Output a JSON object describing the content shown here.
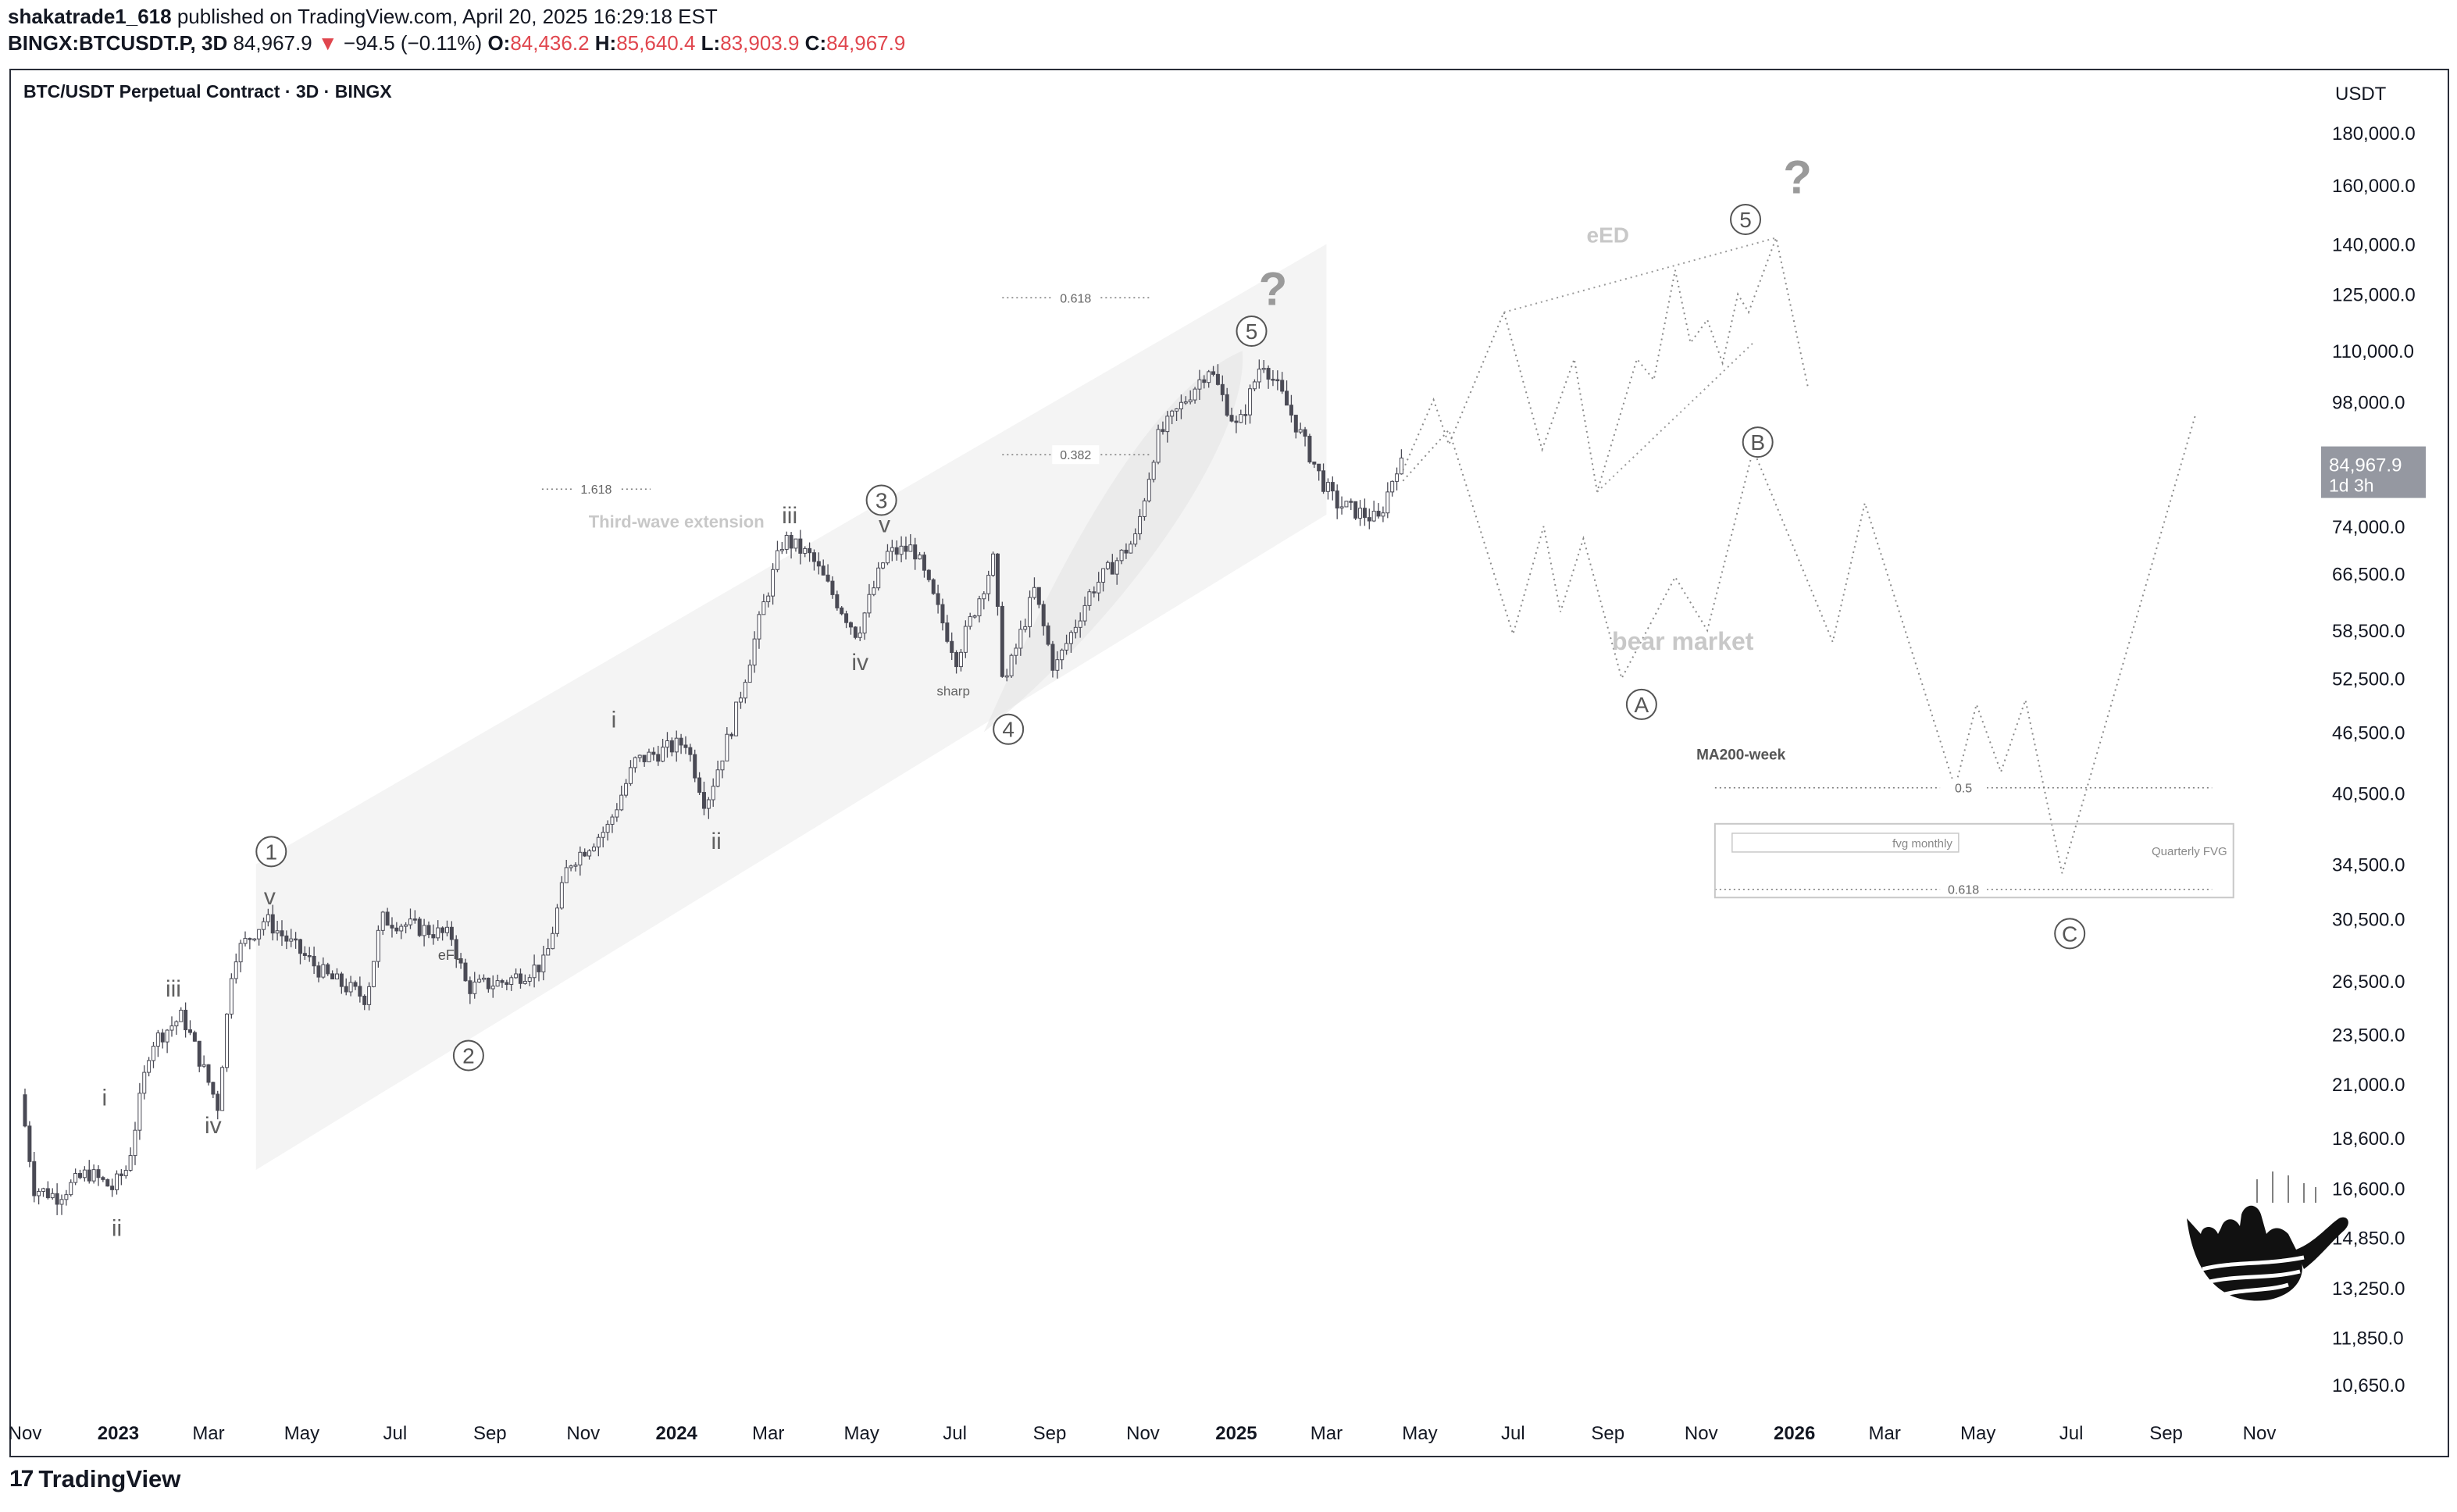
{
  "header": {
    "author": "shakatrade1_618",
    "published_text": "published on TradingView.com, April 20, 2025 16:29:18 EST",
    "symbol": "BINGX:BTCUSDT.P, 3D",
    "last": "84,967.9",
    "change_arrow": "▼",
    "change": "−94.5 (−0.11%)",
    "o_label": "O:",
    "o": "84,436.2",
    "h_label": "H:",
    "h": "85,640.4",
    "l_label": "L:",
    "l": "83,903.9",
    "c_label": "C:",
    "c": "84,967.9"
  },
  "chart_title": "BTC/USDT Perpetual Contract · 3D · BINGX",
  "footer": {
    "logo_mark": "17",
    "brand": "TradingView"
  },
  "colors": {
    "down": "#e0464e",
    "candle": "#4a4a55",
    "price_tag": "#9598a1",
    "annotation": "#707070",
    "faint": "#c8c8c8"
  },
  "chart_data": {
    "type": "line",
    "scale": "log",
    "currency": "USDT",
    "ylim": [
      9500,
      210000
    ],
    "y_ticks": [
      {
        "v": 180000,
        "label": "180,000.0"
      },
      {
        "v": 160000,
        "label": "160,000.0"
      },
      {
        "v": 140000,
        "label": "140,000.0"
      },
      {
        "v": 125000,
        "label": "125,000.0"
      },
      {
        "v": 110000,
        "label": "110,000.0"
      },
      {
        "v": 98000,
        "label": "98,000.0"
      },
      {
        "v": 74000,
        "label": "74,000.0"
      },
      {
        "v": 66500,
        "label": "66,500.0"
      },
      {
        "v": 58500,
        "label": "58,500.0"
      },
      {
        "v": 52500,
        "label": "52,500.0"
      },
      {
        "v": 46500,
        "label": "46,500.0"
      },
      {
        "v": 40500,
        "label": "40,500.0"
      },
      {
        "v": 34500,
        "label": "34,500.0"
      },
      {
        "v": 30500,
        "label": "30,500.0"
      },
      {
        "v": 26500,
        "label": "26,500.0"
      },
      {
        "v": 23500,
        "label": "23,500.0"
      },
      {
        "v": 21000,
        "label": "21,000.0"
      },
      {
        "v": 18600,
        "label": "18,600.0"
      },
      {
        "v": 16600,
        "label": "16,600.0"
      },
      {
        "v": 14850,
        "label": "14,850.0"
      },
      {
        "v": 13250,
        "label": "13,250.0"
      },
      {
        "v": 11850,
        "label": "11,850.0"
      },
      {
        "v": 10650,
        "label": "10,650.0"
      }
    ],
    "price_tag": {
      "value": 84967.9,
      "label": "84,967.9",
      "countdown": "1d 3h"
    },
    "x_ticks": [
      {
        "d": "2022-11-01",
        "label": "Nov",
        "bold": false
      },
      {
        "d": "2023-01-01",
        "label": "2023",
        "bold": true
      },
      {
        "d": "2023-03-01",
        "label": "Mar",
        "bold": false
      },
      {
        "d": "2023-05-01",
        "label": "May",
        "bold": false
      },
      {
        "d": "2023-07-01",
        "label": "Jul",
        "bold": false
      },
      {
        "d": "2023-09-01",
        "label": "Sep",
        "bold": false
      },
      {
        "d": "2023-11-01",
        "label": "Nov",
        "bold": false
      },
      {
        "d": "2024-01-01",
        "label": "2024",
        "bold": true
      },
      {
        "d": "2024-03-01",
        "label": "Mar",
        "bold": false
      },
      {
        "d": "2024-05-01",
        "label": "May",
        "bold": false
      },
      {
        "d": "2024-07-01",
        "label": "Jul",
        "bold": false
      },
      {
        "d": "2024-09-01",
        "label": "Sep",
        "bold": false
      },
      {
        "d": "2024-11-01",
        "label": "Nov",
        "bold": false
      },
      {
        "d": "2025-01-01",
        "label": "2025",
        "bold": true
      },
      {
        "d": "2025-03-01",
        "label": "Mar",
        "bold": false
      },
      {
        "d": "2025-05-01",
        "label": "May",
        "bold": false
      },
      {
        "d": "2025-07-01",
        "label": "Jul",
        "bold": false
      },
      {
        "d": "2025-09-01",
        "label": "Sep",
        "bold": false
      },
      {
        "d": "2025-11-01",
        "label": "Nov",
        "bold": false
      },
      {
        "d": "2026-01-01",
        "label": "2026",
        "bold": true
      },
      {
        "d": "2026-03-01",
        "label": "Mar",
        "bold": false
      },
      {
        "d": "2026-05-01",
        "label": "May",
        "bold": false
      },
      {
        "d": "2026-07-01",
        "label": "Jul",
        "bold": false
      },
      {
        "d": "2026-09-01",
        "label": "Sep",
        "bold": false
      },
      {
        "d": "2026-11-01",
        "label": "Nov",
        "bold": false
      }
    ],
    "price_path": [
      {
        "d": "2022-11-01",
        "p": 20500
      },
      {
        "d": "2022-11-10",
        "p": 16600
      },
      {
        "d": "2022-11-25",
        "p": 16300
      },
      {
        "d": "2022-12-15",
        "p": 17200
      },
      {
        "d": "2022-12-31",
        "p": 16600
      },
      {
        "d": "2023-01-10",
        "p": 17400
      },
      {
        "d": "2023-01-25",
        "p": 23000
      },
      {
        "d": "2023-02-15",
        "p": 24500
      },
      {
        "d": "2023-03-10",
        "p": 20000
      },
      {
        "d": "2023-03-20",
        "p": 28000
      },
      {
        "d": "2023-04-10",
        "p": 30500
      },
      {
        "d": "2023-04-25",
        "p": 29000
      },
      {
        "d": "2023-05-20",
        "p": 26800
      },
      {
        "d": "2023-06-15",
        "p": 25500
      },
      {
        "d": "2023-06-25",
        "p": 30500
      },
      {
        "d": "2023-07-15",
        "p": 30000
      },
      {
        "d": "2023-08-10",
        "p": 29300
      },
      {
        "d": "2023-08-20",
        "p": 26100
      },
      {
        "d": "2023-09-15",
        "p": 26500
      },
      {
        "d": "2023-10-10",
        "p": 27600
      },
      {
        "d": "2023-10-25",
        "p": 34500
      },
      {
        "d": "2023-11-20",
        "p": 37500
      },
      {
        "d": "2023-12-08",
        "p": 43500
      },
      {
        "d": "2024-01-10",
        "p": 45500
      },
      {
        "d": "2024-01-23",
        "p": 39500
      },
      {
        "d": "2024-02-10",
        "p": 47500
      },
      {
        "d": "2024-03-01",
        "p": 62000
      },
      {
        "d": "2024-03-14",
        "p": 72000
      },
      {
        "d": "2024-04-01",
        "p": 69000
      },
      {
        "d": "2024-04-15",
        "p": 63500
      },
      {
        "d": "2024-05-01",
        "p": 58000
      },
      {
        "d": "2024-05-20",
        "p": 69500
      },
      {
        "d": "2024-06-07",
        "p": 70500
      },
      {
        "d": "2024-07-05",
        "p": 55000
      },
      {
        "d": "2024-07-29",
        "p": 68500
      },
      {
        "d": "2024-08-05",
        "p": 51500
      },
      {
        "d": "2024-08-25",
        "p": 64000
      },
      {
        "d": "2024-09-07",
        "p": 53500
      },
      {
        "d": "2024-10-01",
        "p": 64000
      },
      {
        "d": "2024-10-30",
        "p": 72000
      },
      {
        "d": "2024-11-13",
        "p": 90000
      },
      {
        "d": "2024-12-17",
        "p": 106000
      },
      {
        "d": "2025-01-05",
        "p": 92000
      },
      {
        "d": "2025-01-21",
        "p": 108000
      },
      {
        "d": "2025-02-08",
        "p": 96000
      },
      {
        "d": "2025-03-01",
        "p": 82000
      },
      {
        "d": "2025-03-10",
        "p": 78000
      },
      {
        "d": "2025-04-07",
        "p": 75000
      },
      {
        "d": "2025-04-19",
        "p": 84968
      }
    ],
    "scenarios": [
      {
        "name": "bear market",
        "points": [
          {
            "d": "2025-04-20",
            "p": 82000
          },
          {
            "d": "2025-05-20",
            "p": 92000
          },
          {
            "d": "2025-07-01",
            "p": 58000
          },
          {
            "d": "2025-07-21",
            "p": 74000
          },
          {
            "d": "2025-08-01",
            "p": 61000
          },
          {
            "d": "2025-08-16",
            "p": 72000
          },
          {
            "d": "2025-09-10",
            "p": 52500
          },
          {
            "d": "2025-10-15",
            "p": 66000
          },
          {
            "d": "2025-11-05",
            "p": 58500
          },
          {
            "d": "2025-12-05",
            "p": 88000
          },
          {
            "d": "2026-01-26",
            "p": 57000
          },
          {
            "d": "2026-02-16",
            "p": 78000
          },
          {
            "d": "2026-04-16",
            "p": 41000
          },
          {
            "d": "2026-04-30",
            "p": 49500
          },
          {
            "d": "2026-05-16",
            "p": 42500
          },
          {
            "d": "2026-06-01",
            "p": 50000
          },
          {
            "d": "2026-06-25",
            "p": 33800
          },
          {
            "d": "2026-09-20",
            "p": 95000
          }
        ]
      },
      {
        "name": "eED",
        "points": [
          {
            "d": "2025-04-20",
            "p": 84000
          },
          {
            "d": "2025-05-10",
            "p": 98500
          },
          {
            "d": "2025-05-20",
            "p": 89000
          },
          {
            "d": "2025-06-25",
            "p": 120000
          },
          {
            "d": "2025-07-20",
            "p": 88000
          },
          {
            "d": "2025-08-10",
            "p": 108000
          },
          {
            "d": "2025-08-25",
            "p": 80000
          },
          {
            "d": "2025-09-20",
            "p": 108000
          },
          {
            "d": "2025-10-01",
            "p": 103000
          },
          {
            "d": "2025-10-15",
            "p": 132000
          },
          {
            "d": "2025-10-25",
            "p": 112000
          },
          {
            "d": "2025-11-05",
            "p": 118000
          },
          {
            "d": "2025-11-15",
            "p": 107000
          },
          {
            "d": "2025-11-25",
            "p": 125000
          },
          {
            "d": "2025-12-02",
            "p": 120000
          },
          {
            "d": "2025-12-20",
            "p": 142000
          },
          {
            "d": "2026-01-10",
            "p": 101000
          }
        ]
      }
    ],
    "wave_labels": [
      {
        "d": "2023-04-11",
        "p": 35500,
        "label": "1",
        "kind": "circle"
      },
      {
        "d": "2023-08-18",
        "p": 22400,
        "label": "2",
        "kind": "circle"
      },
      {
        "d": "2024-05-14",
        "p": 78500,
        "label": "3",
        "kind": "circle"
      },
      {
        "d": "2024-08-05",
        "p": 46800,
        "label": "4",
        "kind": "circle"
      },
      {
        "d": "2025-01-11",
        "p": 115000,
        "label": "5",
        "kind": "circle"
      },
      {
        "d": "2025-11-30",
        "p": 148000,
        "label": "5",
        "kind": "circle"
      },
      {
        "d": "2025-09-23",
        "p": 49500,
        "label": "A",
        "kind": "circle"
      },
      {
        "d": "2025-12-08",
        "p": 89500,
        "label": "B",
        "kind": "circle"
      },
      {
        "d": "2026-06-30",
        "p": 29500,
        "label": "C",
        "kind": "circle"
      },
      {
        "d": "2023-04-10",
        "p": 31500,
        "label": "v",
        "kind": "roman"
      },
      {
        "d": "2023-03-04",
        "p": 18800,
        "label": "iv",
        "kind": "roman"
      },
      {
        "d": "2022-12-23",
        "p": 20000,
        "label": "i",
        "kind": "roman"
      },
      {
        "d": "2023-02-06",
        "p": 25600,
        "label": "iii",
        "kind": "roman"
      },
      {
        "d": "2022-12-31",
        "p": 14900,
        "label": "ii",
        "kind": "roman"
      },
      {
        "d": "2023-11-21",
        "p": 47000,
        "label": "i",
        "kind": "roman"
      },
      {
        "d": "2024-01-27",
        "p": 35700,
        "label": "ii",
        "kind": "roman"
      },
      {
        "d": "2024-03-15",
        "p": 74500,
        "label": "iii",
        "kind": "roman"
      },
      {
        "d": "2024-04-30",
        "p": 53500,
        "label": "iv",
        "kind": "roman"
      },
      {
        "d": "2024-05-16",
        "p": 73000,
        "label": "v",
        "kind": "roman"
      }
    ],
    "markers": [
      {
        "d": "2025-01-25",
        "p": 122000,
        "label": "?"
      },
      {
        "d": "2026-01-03",
        "p": 157000,
        "label": "?"
      }
    ],
    "annotations": [
      {
        "d": "2023-08-06",
        "p": 27800,
        "label": "eFL"
      },
      {
        "d": "2024-06-30",
        "p": 50500,
        "label": "sharp"
      },
      {
        "d": "2024-01-01",
        "p": 73800,
        "label": "Third-wave extension"
      },
      {
        "d": "2025-10-20",
        "p": 56000,
        "label": "bear market"
      },
      {
        "d": "2025-09-01",
        "p": 140500,
        "label": "eED"
      },
      {
        "d": "2025-11-27",
        "p": 43700,
        "label": "MA200-week"
      }
    ],
    "fib_levels": [
      {
        "from": "2023-10-05",
        "to": "2023-12-15",
        "p": 80500,
        "label": "1.618"
      },
      {
        "from": "2024-08-01",
        "to": "2024-11-05",
        "p": 124000,
        "label": "0.618"
      },
      {
        "from": "2024-08-01",
        "to": "2024-11-05",
        "p": 87000,
        "label": "0.382"
      },
      {
        "from": "2025-11-10",
        "to": "2026-10-01",
        "p": 41000,
        "label": "0.5"
      },
      {
        "from": "2025-11-10",
        "to": "2026-10-01",
        "p": 32600,
        "label": "0.618"
      }
    ],
    "fvg_box": {
      "from": "2025-11-10",
      "to": "2026-10-15",
      "top": 37800,
      "bottom": 32000,
      "label": "Quarterly FVG",
      "inner_label": "fvg monthly"
    }
  }
}
